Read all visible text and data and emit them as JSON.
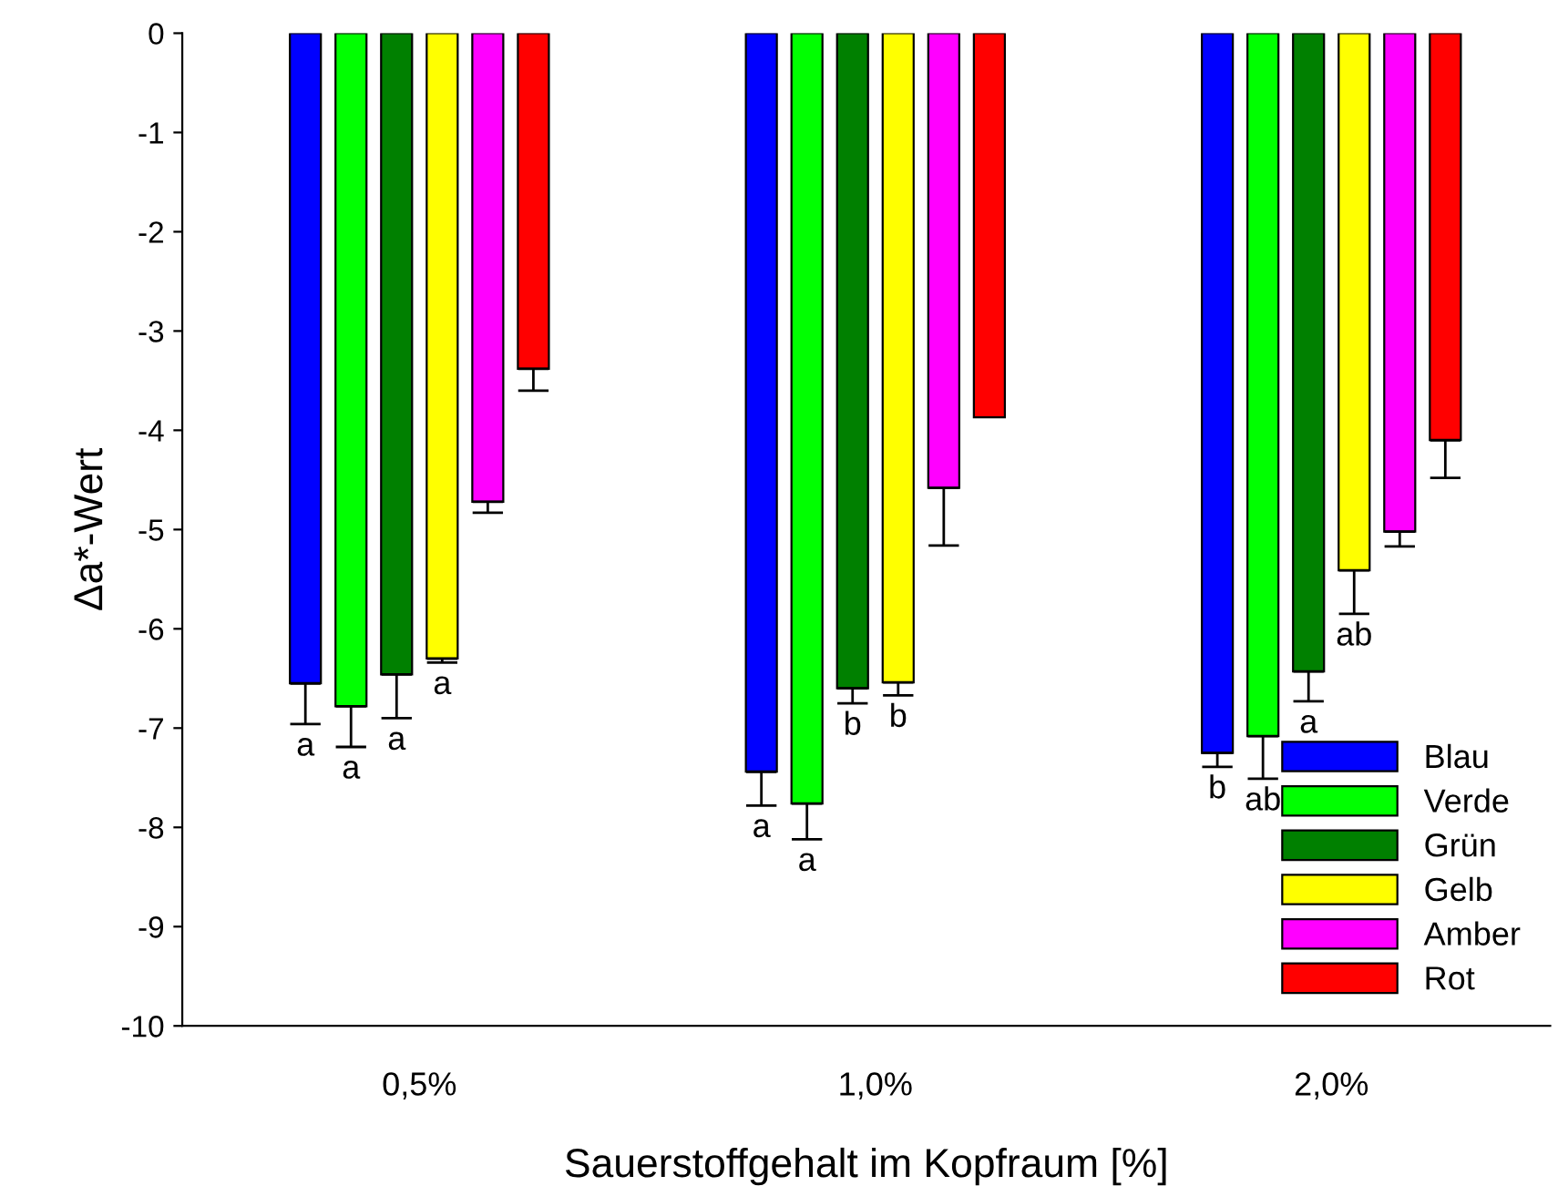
{
  "chart_data": {
    "type": "bar",
    "xlabel": "Sauerstoffgehalt im Kopfraum [%]",
    "ylabel": "Δa*-Wert",
    "categories": [
      "0,5%",
      "1,0%",
      "2,0%"
    ],
    "series": [
      {
        "name": "Blau",
        "color": "#0000ff",
        "values": [
          -6.55,
          -7.44,
          -7.25
        ],
        "errors": [
          [
            -6.96,
            -6.55
          ],
          [
            -7.78,
            -7.44
          ],
          [
            -7.39,
            -7.25
          ]
        ],
        "value_labels": [
          "a",
          "a",
          "b"
        ]
      },
      {
        "name": "Verde",
        "color": "#00ff00",
        "values": [
          -6.78,
          -7.76,
          -7.08
        ],
        "errors": [
          [
            -7.19,
            -6.78
          ],
          [
            -8.12,
            -7.76
          ],
          [
            -7.51,
            -7.08
          ]
        ],
        "value_labels": [
          "a",
          "a",
          "ab"
        ]
      },
      {
        "name": "Grün",
        "color": "#008000",
        "values": [
          -6.46,
          -6.6,
          -6.43
        ],
        "errors": [
          [
            -6.9,
            -6.46
          ],
          [
            -6.75,
            -6.6
          ],
          [
            -6.73,
            -6.43
          ]
        ],
        "value_labels": [
          "a",
          "b",
          "a"
        ]
      },
      {
        "name": "Gelb",
        "color": "#ffff00",
        "values": [
          -6.3,
          -6.54,
          -5.41
        ],
        "errors": [
          [
            -6.34,
            -6.3
          ],
          [
            -6.67,
            -6.54
          ],
          [
            -5.85,
            -5.41
          ]
        ],
        "value_labels": [
          "a",
          "b",
          "ab"
        ]
      },
      {
        "name": "Amber",
        "color": "#ff00ff",
        "values": [
          -4.72,
          -4.58,
          -5.02
        ],
        "errors": [
          [
            -4.83,
            -4.72
          ],
          [
            -5.16,
            -4.58
          ],
          [
            -5.17,
            -5.02
          ]
        ]
      },
      {
        "name": "Rot",
        "color": "#ff0000",
        "values": [
          -3.38,
          -3.87,
          -4.1
        ],
        "errors": [
          [
            -3.6,
            -3.38
          ],
          null,
          [
            -4.48,
            -4.1
          ]
        ]
      }
    ],
    "ylim": [
      -10,
      0
    ],
    "yticks": [
      0,
      {
        "value": -1,
        "label": "-1"
      },
      {
        "value": -2,
        "label": "-2"
      },
      {
        "value": -3,
        "label": "-3"
      },
      {
        "value": -4,
        "label": "-4"
      },
      {
        "value": -5,
        "label": "-5"
      },
      {
        "value": -6,
        "label": "-6"
      },
      {
        "value": -7,
        "label": "-7"
      },
      {
        "value": -8,
        "label": "-8"
      },
      {
        "value": -9,
        "label": "-9"
      },
      {
        "value": -10,
        "label": "-10"
      }
    ],
    "legend": "bottom right",
    "grid": false
  }
}
